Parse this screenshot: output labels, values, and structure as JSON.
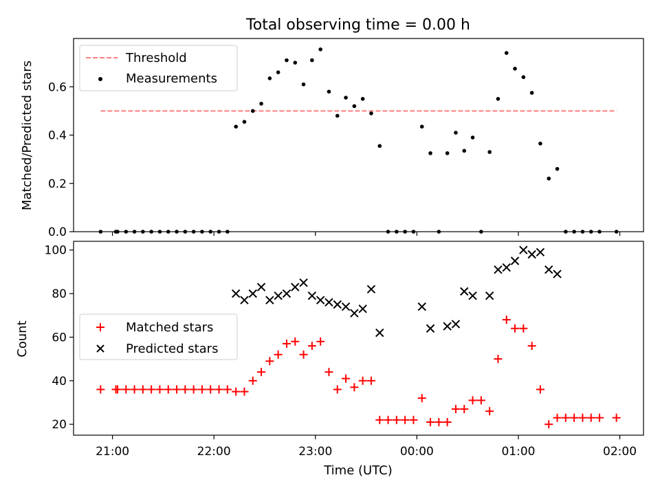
{
  "title": "Total observing time = 0.00 h",
  "xlabel": "Time (UTC)",
  "x_ticks": [
    "21:00",
    "22:00",
    "23:00",
    "00:00",
    "01:00",
    "02:00"
  ],
  "chart_data": [
    {
      "type": "scatter",
      "ylabel": "Matched/Predicted stars",
      "ylim": [
        0,
        0.8
      ],
      "yticks": [
        "0.0",
        "0.2",
        "0.4",
        "0.6"
      ],
      "xlim": [
        "20:37",
        "02:14"
      ],
      "legend_position": "top-left",
      "series": [
        {
          "name": "Threshold",
          "kind": "dashed-line",
          "color": "#ff7f7f",
          "x": [
            "20:53",
            "01:58"
          ],
          "y": [
            0.5,
            0.5
          ]
        },
        {
          "name": "Measurements",
          "kind": "points",
          "color": "#000000",
          "points": [
            [
              "20:53",
              0.0
            ],
            [
              "21:02",
              0.0
            ],
            [
              "21:03",
              0.0
            ],
            [
              "21:08",
              0.0
            ],
            [
              "21:13",
              0.0
            ],
            [
              "21:18",
              0.0
            ],
            [
              "21:23",
              0.0
            ],
            [
              "21:28",
              0.0
            ],
            [
              "21:33",
              0.0
            ],
            [
              "21:38",
              0.0
            ],
            [
              "21:43",
              0.0
            ],
            [
              "21:48",
              0.0
            ],
            [
              "21:53",
              0.0
            ],
            [
              "21:58",
              0.0
            ],
            [
              "22:03",
              0.0
            ],
            [
              "22:08",
              0.0
            ],
            [
              "22:13",
              0.435
            ],
            [
              "22:18",
              0.455
            ],
            [
              "22:23",
              0.5
            ],
            [
              "22:28",
              0.53
            ],
            [
              "22:33",
              0.635
            ],
            [
              "22:38",
              0.66
            ],
            [
              "22:43",
              0.71
            ],
            [
              "22:48",
              0.7
            ],
            [
              "22:53",
              0.61
            ],
            [
              "22:58",
              0.71
            ],
            [
              "23:03",
              0.755
            ],
            [
              "23:08",
              0.58
            ],
            [
              "23:13",
              0.48
            ],
            [
              "23:18",
              0.555
            ],
            [
              "23:23",
              0.52
            ],
            [
              "23:28",
              0.55
            ],
            [
              "23:33",
              0.49
            ],
            [
              "23:38",
              0.355
            ],
            [
              "23:43",
              0.0
            ],
            [
              "23:48",
              0.0
            ],
            [
              "23:53",
              0.0
            ],
            [
              "23:58",
              0.0
            ],
            [
              "00:03",
              0.435
            ],
            [
              "00:08",
              0.325
            ],
            [
              "00:13",
              0.0
            ],
            [
              "00:18",
              0.325
            ],
            [
              "00:23",
              0.41
            ],
            [
              "00:28",
              0.335
            ],
            [
              "00:33",
              0.39
            ],
            [
              "00:38",
              0.0
            ],
            [
              "00:43",
              0.33
            ],
            [
              "00:48",
              0.55
            ],
            [
              "00:53",
              0.74
            ],
            [
              "00:58",
              0.675
            ],
            [
              "01:03",
              0.64
            ],
            [
              "01:08",
              0.575
            ],
            [
              "01:13",
              0.365
            ],
            [
              "01:18",
              0.22
            ],
            [
              "01:23",
              0.26
            ],
            [
              "01:28",
              0.0
            ],
            [
              "01:33",
              0.0
            ],
            [
              "01:38",
              0.0
            ],
            [
              "01:43",
              0.0
            ],
            [
              "01:48",
              0.0
            ],
            [
              "01:58",
              0.0
            ]
          ]
        }
      ]
    },
    {
      "type": "scatter",
      "ylabel": "Count",
      "ylim": [
        15,
        104
      ],
      "yticks": [
        "20",
        "40",
        "60",
        "80",
        "100"
      ],
      "xlim": [
        "20:37",
        "02:14"
      ],
      "legend_position": "center-left",
      "series": [
        {
          "name": "Matched stars",
          "marker": "+",
          "color": "#ff0000",
          "points": [
            [
              "20:53",
              36
            ],
            [
              "21:02",
              36
            ],
            [
              "21:03",
              36
            ],
            [
              "21:08",
              36
            ],
            [
              "21:13",
              36
            ],
            [
              "21:18",
              36
            ],
            [
              "21:23",
              36
            ],
            [
              "21:28",
              36
            ],
            [
              "21:33",
              36
            ],
            [
              "21:38",
              36
            ],
            [
              "21:43",
              36
            ],
            [
              "21:48",
              36
            ],
            [
              "21:53",
              36
            ],
            [
              "21:58",
              36
            ],
            [
              "22:03",
              36
            ],
            [
              "22:08",
              36
            ],
            [
              "22:13",
              35
            ],
            [
              "22:18",
              35
            ],
            [
              "22:23",
              40
            ],
            [
              "22:28",
              44
            ],
            [
              "22:33",
              49
            ],
            [
              "22:38",
              52
            ],
            [
              "22:43",
              57
            ],
            [
              "22:48",
              58
            ],
            [
              "22:53",
              52
            ],
            [
              "22:58",
              56
            ],
            [
              "23:03",
              58
            ],
            [
              "23:08",
              44
            ],
            [
              "23:13",
              36
            ],
            [
              "23:18",
              41
            ],
            [
              "23:23",
              37
            ],
            [
              "23:28",
              40
            ],
            [
              "23:33",
              40
            ],
            [
              "23:38",
              22
            ],
            [
              "23:43",
              22
            ],
            [
              "23:48",
              22
            ],
            [
              "23:53",
              22
            ],
            [
              "23:58",
              22
            ],
            [
              "00:03",
              32
            ],
            [
              "00:08",
              21
            ],
            [
              "00:13",
              21
            ],
            [
              "00:18",
              21
            ],
            [
              "00:23",
              27
            ],
            [
              "00:28",
              27
            ],
            [
              "00:33",
              31
            ],
            [
              "00:38",
              31
            ],
            [
              "00:43",
              26
            ],
            [
              "00:48",
              50
            ],
            [
              "00:53",
              68
            ],
            [
              "00:58",
              64
            ],
            [
              "01:03",
              64
            ],
            [
              "01:08",
              56
            ],
            [
              "01:13",
              36
            ],
            [
              "01:18",
              20
            ],
            [
              "01:23",
              23
            ],
            [
              "01:28",
              23
            ],
            [
              "01:33",
              23
            ],
            [
              "01:38",
              23
            ],
            [
              "01:43",
              23
            ],
            [
              "01:48",
              23
            ],
            [
              "01:58",
              23
            ]
          ]
        },
        {
          "name": "Predicted stars",
          "marker": "x",
          "color": "#000000",
          "points": [
            [
              "22:13",
              80
            ],
            [
              "22:18",
              77
            ],
            [
              "22:23",
              80
            ],
            [
              "22:28",
              83
            ],
            [
              "22:33",
              77
            ],
            [
              "22:38",
              79
            ],
            [
              "22:43",
              80
            ],
            [
              "22:48",
              83
            ],
            [
              "22:53",
              85
            ],
            [
              "22:58",
              79
            ],
            [
              "23:03",
              77
            ],
            [
              "23:08",
              76
            ],
            [
              "23:13",
              75
            ],
            [
              "23:18",
              74
            ],
            [
              "23:23",
              71
            ],
            [
              "23:28",
              73
            ],
            [
              "23:33",
              82
            ],
            [
              "23:38",
              62
            ],
            [
              "00:03",
              74
            ],
            [
              "00:08",
              64
            ],
            [
              "00:18",
              65
            ],
            [
              "00:23",
              66
            ],
            [
              "00:28",
              81
            ],
            [
              "00:33",
              79
            ],
            [
              "00:43",
              79
            ],
            [
              "00:48",
              91
            ],
            [
              "00:53",
              92
            ],
            [
              "00:58",
              95
            ],
            [
              "01:03",
              100
            ],
            [
              "01:08",
              98
            ],
            [
              "01:13",
              99
            ],
            [
              "01:18",
              91
            ],
            [
              "01:23",
              89
            ]
          ]
        }
      ]
    }
  ]
}
